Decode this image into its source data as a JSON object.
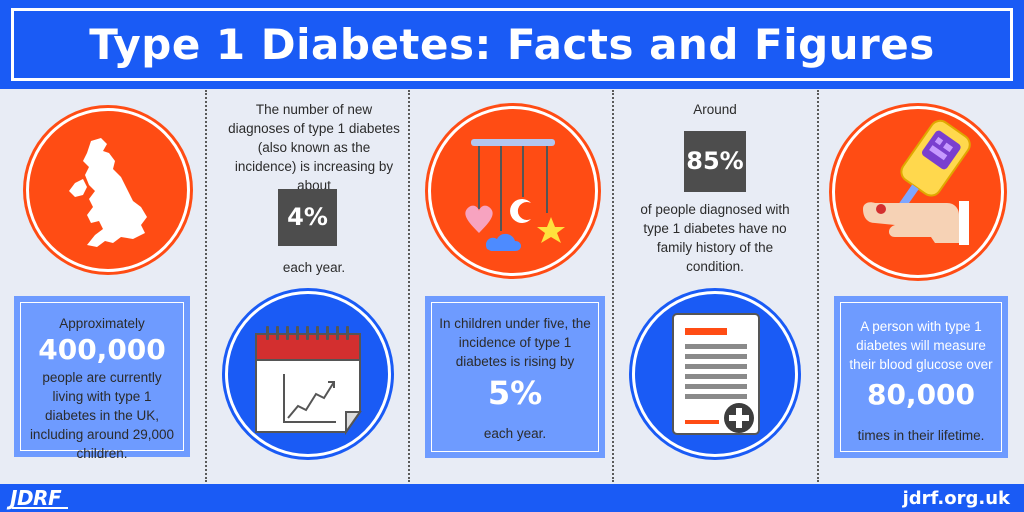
{
  "header": {
    "title": "Type 1 Diabetes: Facts and Figures"
  },
  "footer": {
    "logo": "JDRF",
    "site": "jdrf.org.uk"
  },
  "panel1": {
    "pre": "Approximately",
    "figure": "400,000",
    "post": "people are currently living with type 1 diabetes in the UK, including around 29,000 children."
  },
  "panel2": {
    "pre": "The number of new diagnoses of type 1 diabetes (also known as the incidence) is increasing by about",
    "figure": "4%",
    "post": "each year."
  },
  "panel3": {
    "pre": "In children under five, the incidence of type 1 diabetes is rising by",
    "figure": "5%",
    "post": "each year."
  },
  "panel4": {
    "pre": "Around",
    "figure": "85%",
    "post": "of people diagnosed with type 1 diabetes have no family history of the condition."
  },
  "panel5": {
    "pre": "A person with type 1 diabetes will  measure their blood glucose over",
    "figure": "80,000",
    "post": "times in their lifetime."
  },
  "colors": {
    "brand_blue": "#1a5bf5",
    "accent_orange": "#ff4c14",
    "card_blue": "#6e9bff",
    "figure_box": "#4d4d4d",
    "background": "#e8ecf5"
  },
  "icons": [
    "uk-map-icon",
    "calendar-chart-icon",
    "baby-mobile-icon",
    "medical-document-icon",
    "glucose-meter-icon"
  ]
}
